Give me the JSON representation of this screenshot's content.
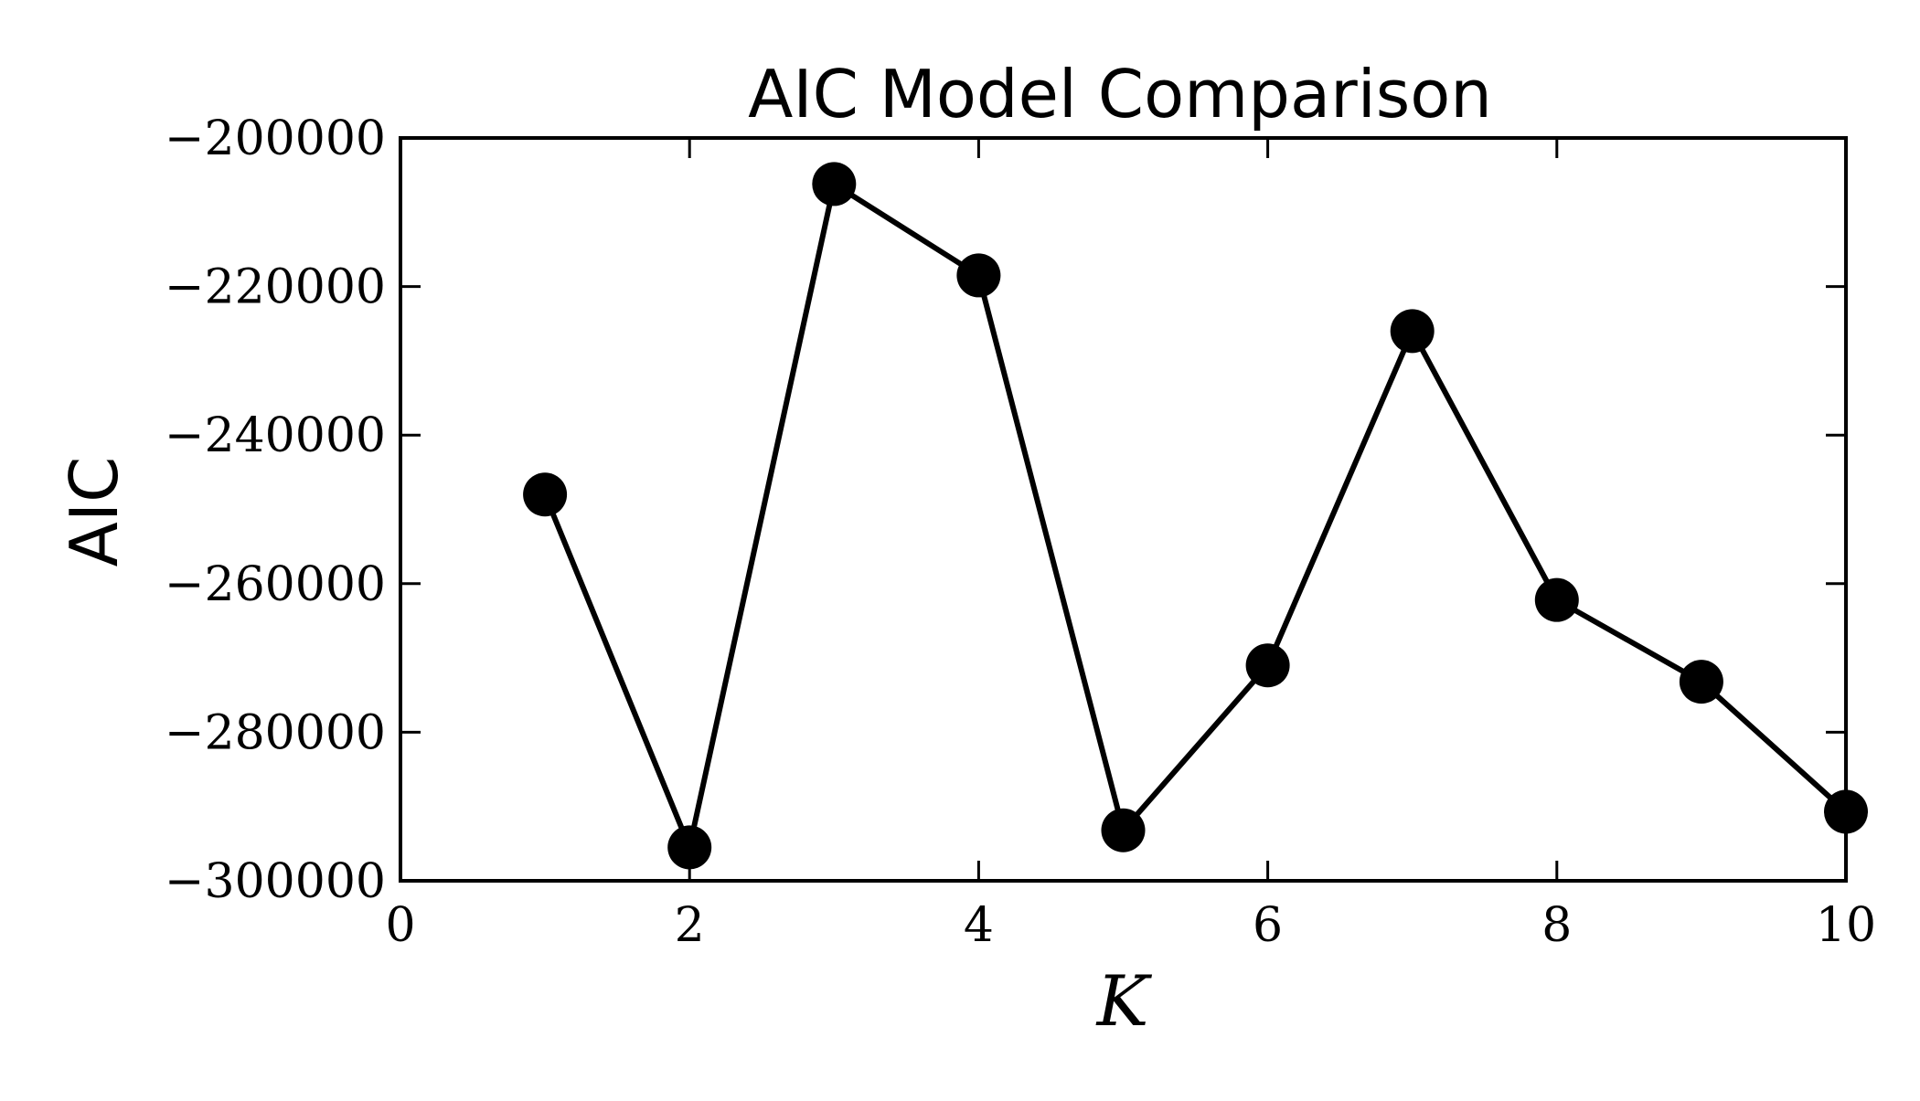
{
  "chart_data": {
    "type": "line",
    "title": "AIC Model Comparison",
    "xlabel": "K",
    "ylabel": "AIC",
    "xlim": [
      0,
      10
    ],
    "ylim": [
      -300000,
      -200000
    ],
    "xticks": [
      0,
      2,
      4,
      6,
      8,
      10
    ],
    "xtick_labels": [
      "0",
      "2",
      "4",
      "6",
      "8",
      "10"
    ],
    "yticks": [
      -300000,
      -280000,
      -260000,
      -240000,
      -220000,
      -200000
    ],
    "ytick_labels": [
      "−300000",
      "−280000",
      "−260000",
      "−240000",
      "−220000",
      "−200000"
    ],
    "grid": false,
    "legend": false,
    "marker": "circle",
    "line_color": "#000000",
    "marker_color": "#000000",
    "series": [
      {
        "x": [
          1,
          2,
          3,
          4,
          5,
          6,
          7,
          8,
          9,
          10
        ],
        "y": [
          -248000,
          -295500,
          -206200,
          -218500,
          -293200,
          -271000,
          -226000,
          -262200,
          -273200,
          -290700
        ]
      }
    ]
  }
}
